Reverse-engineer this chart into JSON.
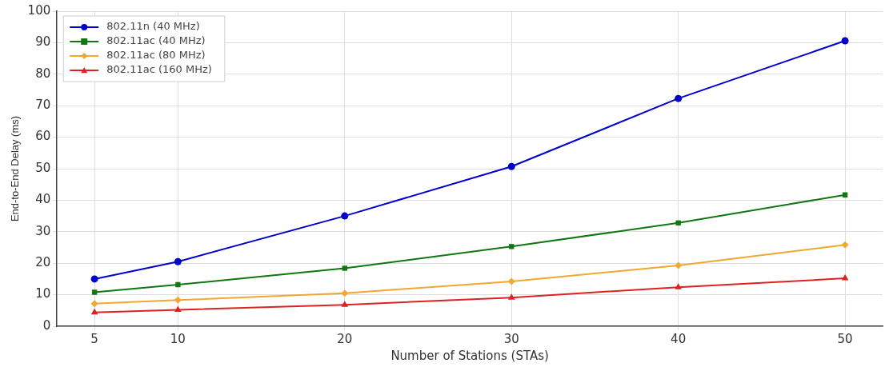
{
  "chart_data": {
    "type": "line",
    "xlabel": "Number of Stations (STAs)",
    "ylabel": "End-to-End Delay (ms)",
    "x": [
      5,
      10,
      20,
      30,
      40,
      50
    ],
    "series": [
      {
        "name": "802.11n (40 MHz)",
        "color": "#0000cc",
        "marker": "circle",
        "values": [
          15,
          20.5,
          35,
          50.7,
          72.3,
          90.6
        ]
      },
      {
        "name": "802.11ac (40 MHz)",
        "color": "#117711",
        "marker": "square",
        "values": [
          10.8,
          13.2,
          18.4,
          25.3,
          32.8,
          41.7
        ]
      },
      {
        "name": "802.11ac (80 MHz)",
        "color": "#f0a830",
        "marker": "diamond",
        "values": [
          7.2,
          8.3,
          10.5,
          14.2,
          19.3,
          25.8
        ]
      },
      {
        "name": "802.11ac (160 MHz)",
        "color": "#dd2222",
        "marker": "triangle",
        "values": [
          4.4,
          5.2,
          6.8,
          9.1,
          12.4,
          15.2
        ]
      }
    ],
    "xlim": [
      2.75,
      52.25
    ],
    "ylim": [
      0,
      100
    ],
    "xticks": [
      5,
      10,
      20,
      30,
      40,
      50
    ],
    "yticks": [
      0,
      10,
      20,
      30,
      40,
      50,
      60,
      70,
      80,
      90,
      100
    ],
    "grid": true,
    "legend": "top left",
    "line_style": "solid"
  }
}
